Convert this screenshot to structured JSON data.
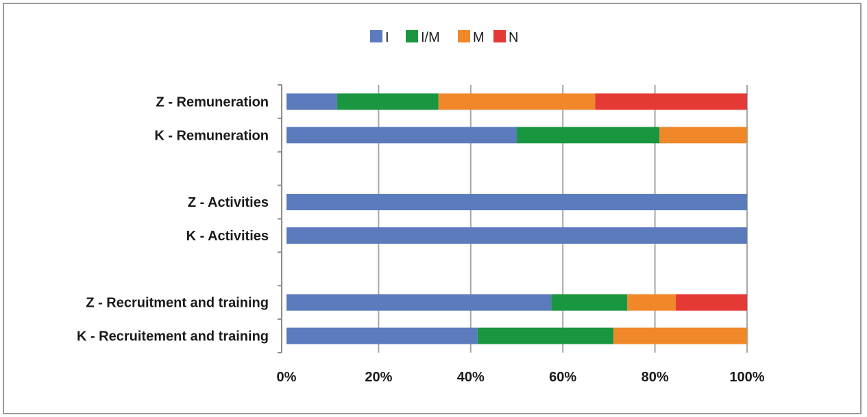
{
  "chart_data": {
    "type": "bar",
    "orientation": "horizontal",
    "stacked": "percent",
    "categories": [
      "Z - Remuneration",
      "K - Remuneration",
      "",
      "Z - Activities",
      "K - Activities",
      "",
      "Z - Recruitment and training",
      "K - Recruitement and training"
    ],
    "series": [
      {
        "name": "I",
        "color": "#5b7bbd",
        "values": [
          11,
          50,
          null,
          100,
          100,
          null,
          57.5,
          41.5
        ]
      },
      {
        "name": "I/M",
        "color": "#1a9641",
        "values": [
          22,
          31,
          null,
          0,
          0,
          null,
          16.5,
          29.5
        ]
      },
      {
        "name": "M",
        "color": "#f0882a",
        "values": [
          34,
          19,
          null,
          0,
          0,
          null,
          10.5,
          29
        ]
      },
      {
        "name": "N",
        "color": "#e53935",
        "values": [
          33,
          0,
          null,
          0,
          0,
          null,
          15.5,
          0
        ]
      }
    ],
    "xlim": [
      0,
      100
    ],
    "xticks": [
      "0%",
      "20%",
      "40%",
      "60%",
      "80%",
      "100%"
    ],
    "grid": true,
    "legend": "top-center"
  }
}
